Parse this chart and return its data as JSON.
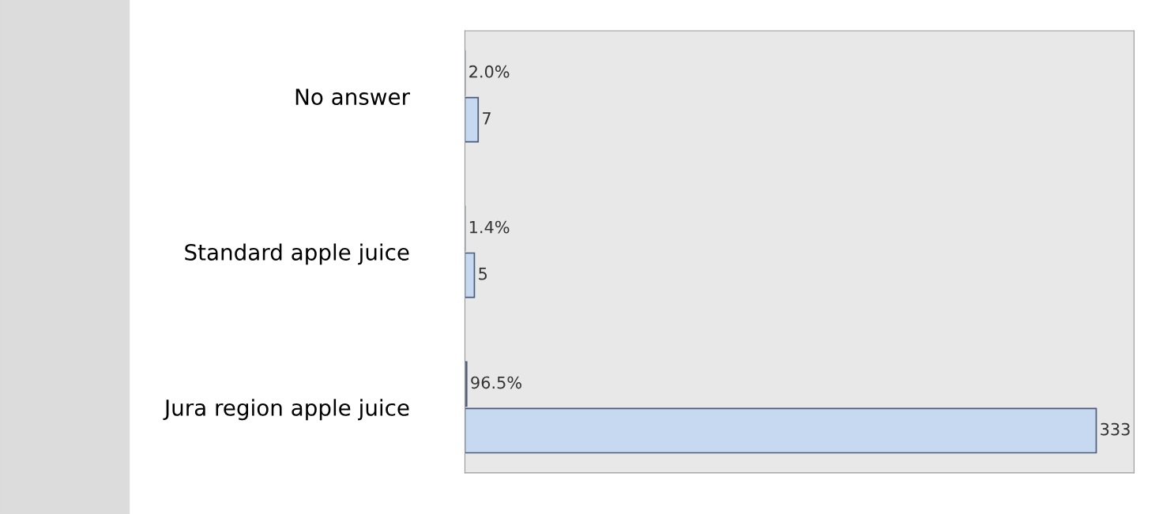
{
  "chart_data": {
    "type": "bar",
    "orientation": "horizontal",
    "categories": [
      "No answer",
      "Standard apple juice",
      "Jura region apple juice"
    ],
    "series": [
      {
        "color": "#808080",
        "values": [
          0.02,
          0.014,
          0.965
        ],
        "value_labels": [
          "2.0%",
          "1.4%",
          "96.5%"
        ]
      },
      {
        "color": "#c6d9f1",
        "values": [
          7,
          5,
          333
        ],
        "value_labels": [
          "7",
          "5",
          "333"
        ]
      }
    ],
    "grid": false,
    "tick_labels": "y"
  }
}
